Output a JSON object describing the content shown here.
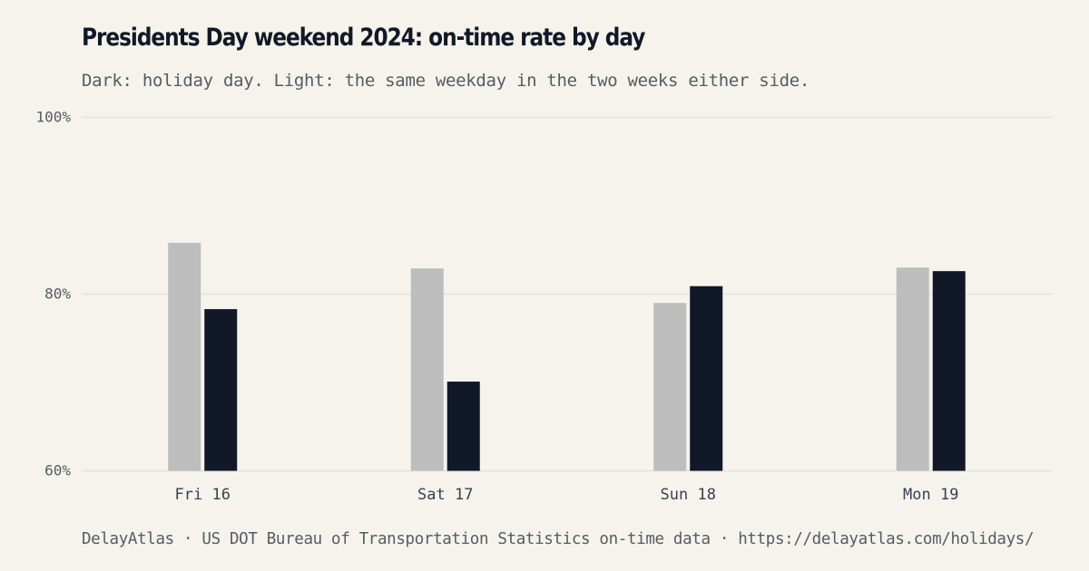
{
  "title": "Presidents Day weekend 2024: on-time rate by day",
  "subtitle": "Dark: holiday day. Light: the same weekday in the two weeks either side.",
  "footer": "DelayAtlas · US DOT Bureau of Transportation Statistics on-time data · https://delayatlas.com/holidays/",
  "colors": {
    "background": "#f6f3ec",
    "holiday": "#111827",
    "comparison": "#bdbdbd",
    "grid": "#e4e1da"
  },
  "chart_data": {
    "type": "bar",
    "categories": [
      "Fri 16",
      "Sat 17",
      "Sun 18",
      "Mon 19"
    ],
    "series": [
      {
        "key": "comparison",
        "values": [
          85.8,
          82.9,
          79.0,
          83.0
        ]
      },
      {
        "key": "holiday",
        "values": [
          78.3,
          70.1,
          80.9,
          82.6
        ]
      }
    ],
    "ylim": [
      60,
      100
    ],
    "yticks": [
      60,
      80,
      100
    ],
    "ytick_labels": [
      "60%",
      "80%",
      "100%"
    ],
    "grid": true,
    "legend": "none"
  }
}
